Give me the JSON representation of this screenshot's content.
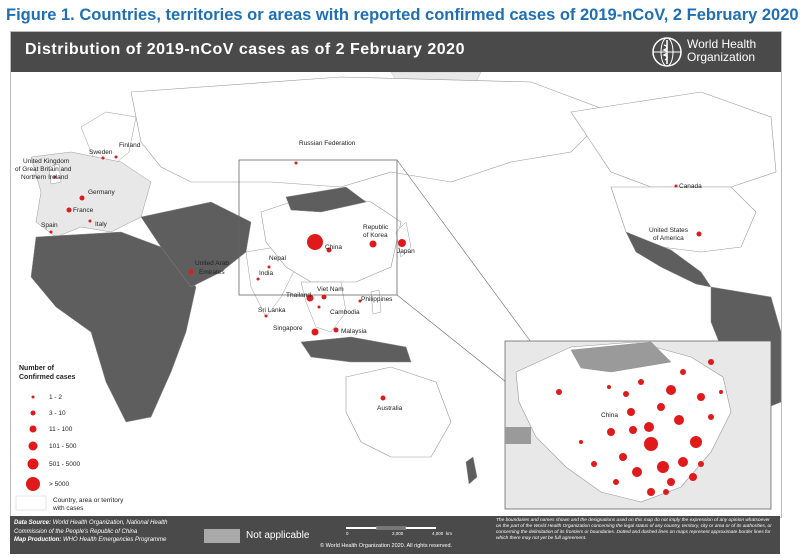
{
  "figure_title": "Figure 1. Countries, territories or areas with reported confirmed cases of 2019-nCoV, 2 February 2020",
  "map_title": "Distribution of 2019-nCoV cases as of 2 February 2020",
  "org": {
    "line1": "World Health",
    "line2": "Organization",
    "logo": "who-emblem-icon"
  },
  "countries": {
    "russia": "Russian Federation",
    "finland": "Finland",
    "sweden": "Sweden",
    "uk": "United Kingdom of Great Britain and Northern Ireland",
    "uk_1": "United Kingdom",
    "uk_2": "of Great Britain and",
    "uk_3": "Northern Ireland",
    "germany": "Germany",
    "france": "France",
    "spain": "Spain",
    "italy": "Italy",
    "uae": "United Arab Emirates",
    "uae_1": "United Arab",
    "uae_2": "Emirates",
    "nepal": "Nepal",
    "india": "India",
    "china": "China",
    "korea": "Republic of Korea",
    "korea_1": "Republic",
    "korea_2": "of Korea",
    "japan": "Japan",
    "thailand": "Thailand",
    "vietnam": "Viet Nam",
    "cambodia": "Cambodia",
    "philippines": "Philippines",
    "srilanka": "Sri Lanka",
    "singapore": "Singapore",
    "malaysia": "Malaysia",
    "australia": "Australia",
    "canada": "Canada",
    "usa": "United States of America",
    "usa_1": "United States",
    "usa_2": "of America",
    "inset_china": "China"
  },
  "legend": {
    "title_1": "Number of",
    "title_2": "Confirmed cases",
    "items": [
      "1 - 2",
      "3 - 10",
      "11 - 100",
      "101 - 500",
      "501 - 5000",
      "> 5000"
    ],
    "no_cases_1": "Country, area or territory",
    "no_cases_2": "with cases"
  },
  "footer": {
    "source_label": "Data Source:",
    "source_text": "World Health Organization, National Health Commission of the People's Republic of China",
    "production_label": "Map Production:",
    "production_text": "WHO Health Emergencies Programme",
    "not_applicable": "Not applicable",
    "scale_0": "0",
    "scale_mid": "2,000",
    "scale_max": "4,000",
    "scale_unit": "km",
    "copyright": "© World Health Organization 2020. All rights reserved.",
    "disclaimer": "The boundaries and names shown and the designations used on this map do not imply the expression of any opinion whatsoever on the part of the World Health Organization concerning the legal status of any country, territory, city or area or of its authorities, or concerning the delimitation of its frontiers or boundaries. Dotted and dashed lines on maps represent approximate border lines for which there may not yet be full agreement."
  },
  "colors": {
    "case_dot": "#e01a1a",
    "land": "#e8e8e8",
    "affected": "#ffffff",
    "na": "#a9a9a9",
    "banner": "#4a4a4a",
    "title_blue": "#1f6fb4"
  }
}
